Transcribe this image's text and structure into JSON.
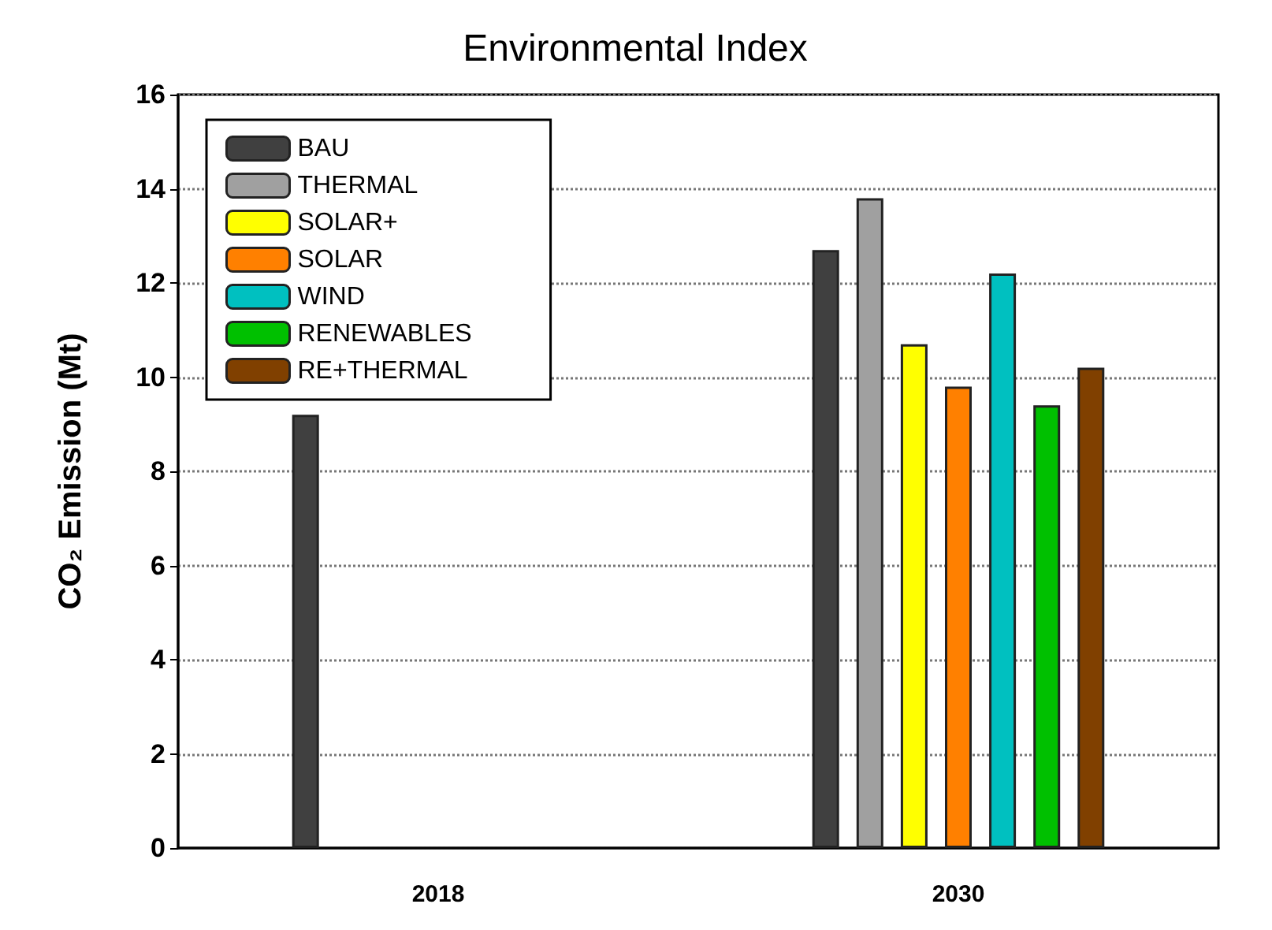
{
  "chart_data": {
    "type": "bar",
    "title": "Environmental Index",
    "ylabel": "CO₂ Emission (Mt)",
    "categories": [
      "2018",
      "2030"
    ],
    "series": [
      {
        "name": "BAU",
        "color": "#404040",
        "values": [
          9.2,
          12.7
        ]
      },
      {
        "name": "THERMAL",
        "color": "#a0a0a0",
        "values": [
          null,
          13.8
        ]
      },
      {
        "name": "SOLAR+",
        "color": "#ffff00",
        "values": [
          null,
          10.7
        ]
      },
      {
        "name": "SOLAR",
        "color": "#ff8000",
        "values": [
          null,
          9.8
        ]
      },
      {
        "name": "WIND",
        "color": "#00c0c0",
        "values": [
          null,
          12.2
        ]
      },
      {
        "name": "RENEWABLES",
        "color": "#00c000",
        "values": [
          null,
          9.4
        ]
      },
      {
        "name": "RE+THERMAL",
        "color": "#804000",
        "values": [
          null,
          10.2
        ]
      }
    ],
    "ylim": [
      0,
      16
    ],
    "yticks": [
      0,
      2,
      4,
      6,
      8,
      10,
      12,
      14,
      16
    ],
    "grid": "y",
    "legend": "top left"
  }
}
